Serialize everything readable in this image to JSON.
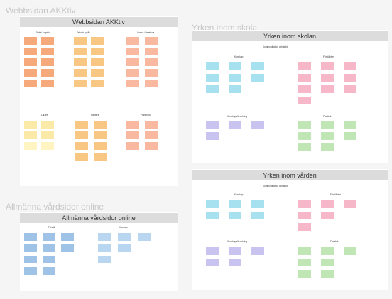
{
  "sections": {
    "akktiv": {
      "frame_title": "Webbsidan AKKtiv",
      "banner": "Webbsidan AKKtiv",
      "columns": [
        "Skola/ kognitiv",
        "Tal och språk",
        "Vuxna i återskola"
      ]
    },
    "skolan": {
      "frame_title": "Yrken inom skola",
      "banner": "Yrken inom skolan",
      "subtitle": "Kommunikation och stöd",
      "groups": [
        "Kunskap",
        "Förståelse",
        "Kunskapsfördelning",
        "Praktisk"
      ]
    },
    "varden": {
      "banner": "Yrken inom vården",
      "subtitle": "Kommunikation och stöd",
      "groups": [
        "Kunskap",
        "Förståelse",
        "Kunskapsfördelning",
        "Praktisk"
      ]
    },
    "allmanna": {
      "frame_title": "Allmänna vårdsidor online",
      "banner": "Allmänna vårdsidor online",
      "groups": [
        "Förstå",
        "Hantera"
      ]
    },
    "akktiv_lower": {
      "groups": [
        "Lärare",
        "Hantera",
        "Planering"
      ]
    }
  }
}
